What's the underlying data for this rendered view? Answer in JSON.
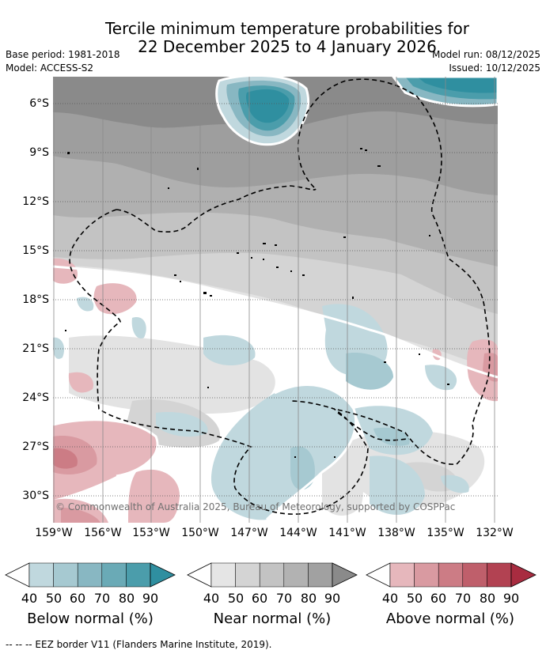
{
  "title_line1": "Tercile minimum temperature probabilities for",
  "title_line2": "22 December 2025 to 4 January 2026",
  "base_period": "Base period: 1981-2018",
  "model": "Model: ACCESS-S2",
  "model_run": "Model run: 08/12/2025",
  "issued": "Issued: 10/12/2025",
  "copyright": "© Commonwealth of Australia 2025, Bureau of Meteorology, supported by COSPPac",
  "y_axis": [
    "6°S",
    "9°S",
    "12°S",
    "15°S",
    "18°S",
    "21°S",
    "24°S",
    "27°S",
    "30°S"
  ],
  "x_axis": [
    "159°W",
    "156°W",
    "153°W",
    "150°W",
    "147°W",
    "144°W",
    "141°W",
    "138°W",
    "135°W",
    "132°W"
  ],
  "colorbars": [
    {
      "label": "Below normal (%)",
      "ticks": [
        "40",
        "50",
        "60",
        "70",
        "80",
        "90"
      ],
      "colors": [
        "#c0d8de",
        "#a6c9d1",
        "#88b7c2",
        "#6aaab6",
        "#4b9dab"
      ],
      "over": "#2f8fa0"
    },
    {
      "label": "Near normal (%)",
      "ticks": [
        "40",
        "50",
        "60",
        "70",
        "80",
        "90"
      ],
      "colors": [
        "#e5e5e5",
        "#d4d4d4",
        "#c3c3c3",
        "#b2b2b2",
        "#a1a1a1"
      ],
      "over": "#8a8a8a"
    },
    {
      "label": "Above normal (%)",
      "ticks": [
        "40",
        "50",
        "60",
        "70",
        "80",
        "90"
      ],
      "colors": [
        "#e6b7bc",
        "#d99aa1",
        "#cc7c85",
        "#bf5f6b",
        "#b24252"
      ],
      "over": "#a82c40"
    }
  ],
  "footer": "-- -- -- EEZ border V11 (Flanders Marine Institute, 2019)."
}
